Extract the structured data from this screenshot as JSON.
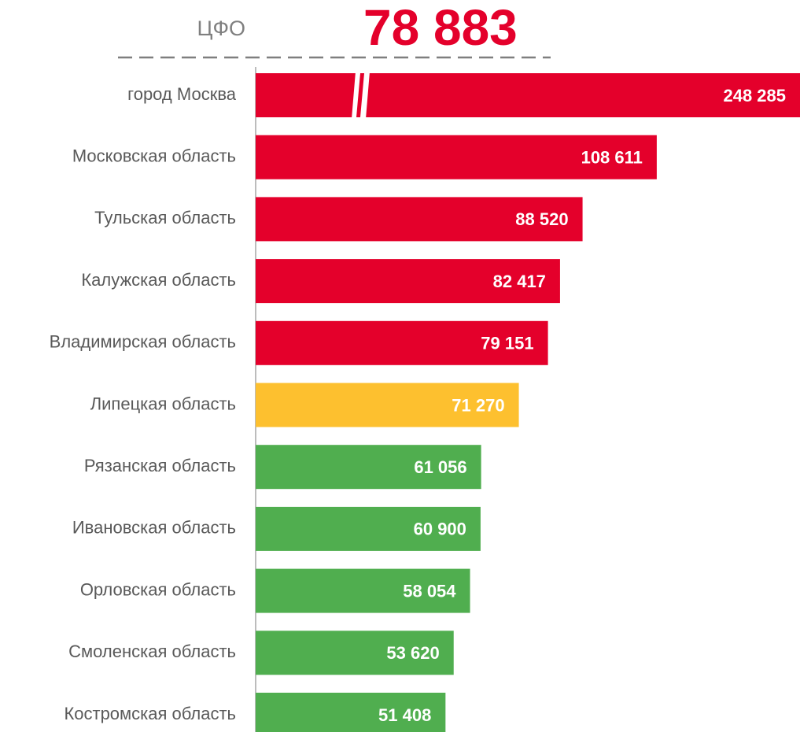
{
  "chart_data": {
    "type": "bar",
    "orientation": "horizontal",
    "reference": {
      "label": "ЦФО",
      "value": 78883,
      "value_label": "78 883",
      "color": "#e4002b"
    },
    "categories": [
      "город Москва",
      "Московская область",
      "Тульская область",
      "Калужская область",
      "Владимирская область",
      "Липецкая область",
      "Рязанская область",
      "Ивановская область",
      "Орловская область",
      "Смоленская область",
      "Костромская область"
    ],
    "values": [
      248285,
      108611,
      88520,
      82417,
      79151,
      71270,
      61056,
      60900,
      58054,
      53620,
      51408
    ],
    "value_labels": [
      "248 285",
      "108 611",
      "88 520",
      "82 417",
      "79 151",
      "71 270",
      "61 056",
      "60 900",
      "58 054",
      "53 620",
      "51 408"
    ],
    "colors": [
      "#e4002b",
      "#e4002b",
      "#e4002b",
      "#e4002b",
      "#e4002b",
      "#fdc02f",
      "#50ae4f",
      "#50ae4f",
      "#50ae4f",
      "#50ae4f",
      "#50ae4f"
    ],
    "xlim": [
      0,
      147400
    ],
    "axis_break": true
  }
}
